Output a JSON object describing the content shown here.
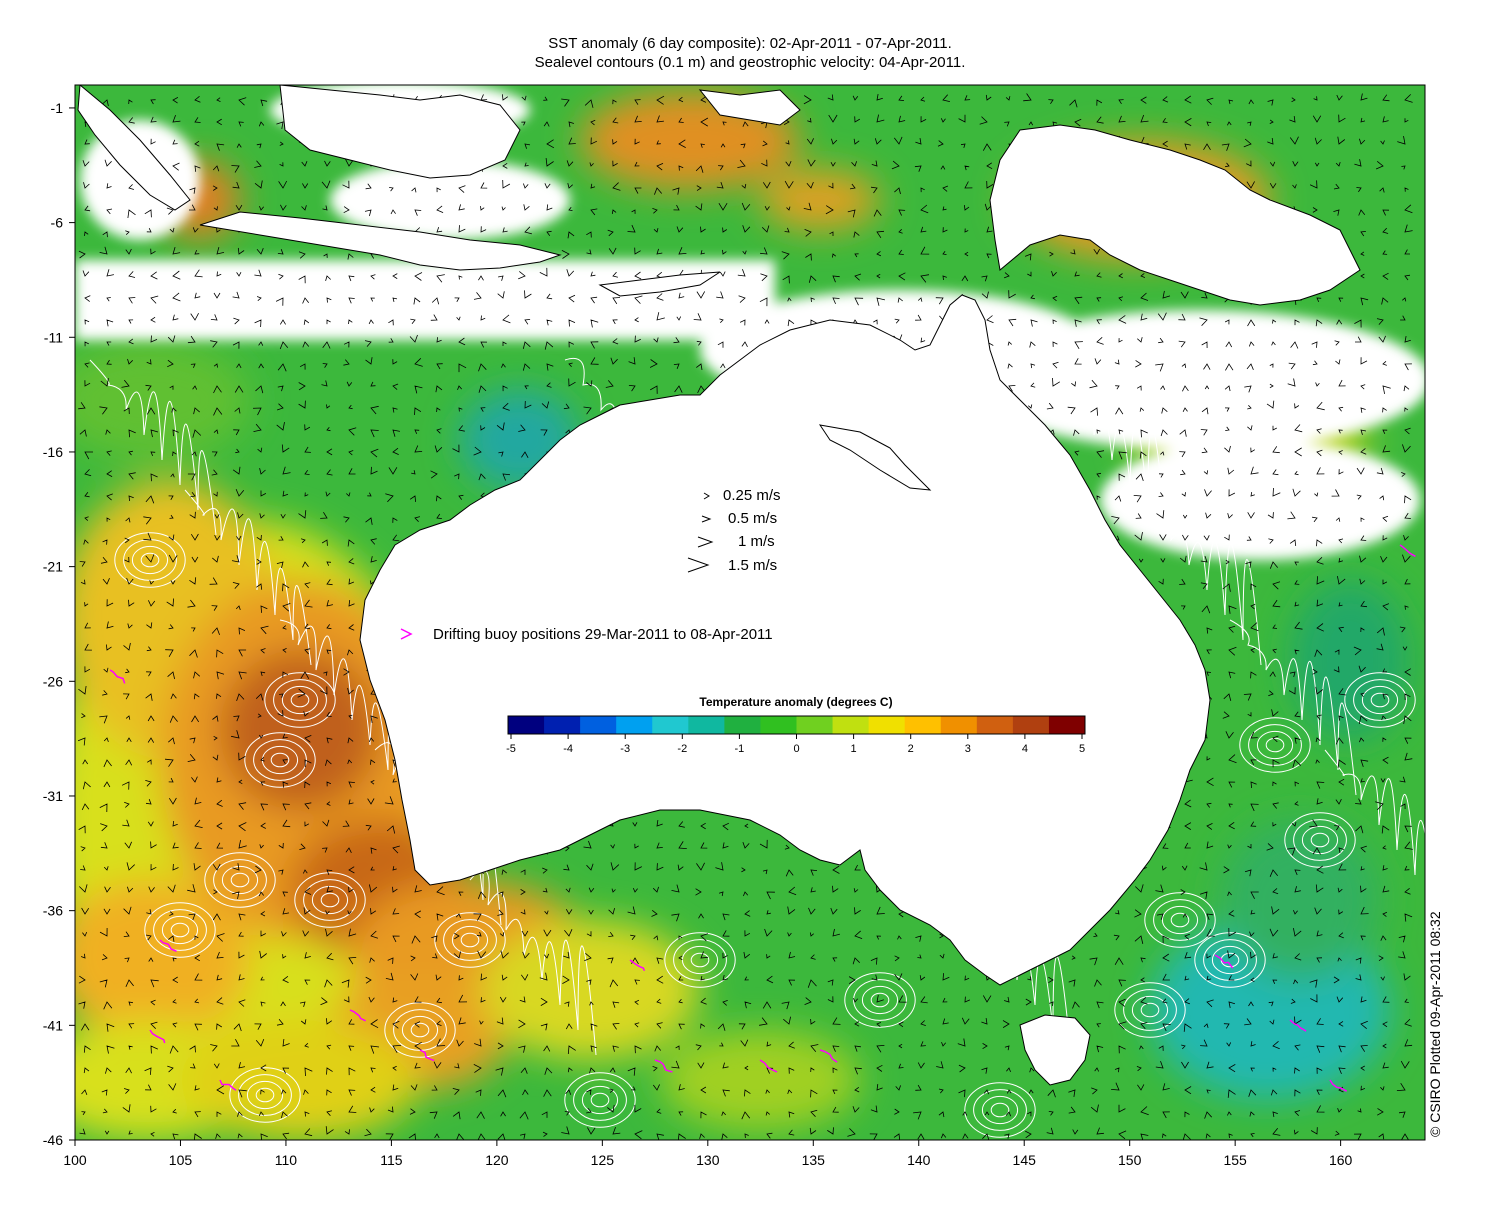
{
  "title": {
    "line1": "SST anomaly (6 day composite): 02-Apr-2011 - 07-Apr-2011.",
    "line2": "Sealevel contours (0.1 m) and geostrophic velocity: 04-Apr-2011."
  },
  "axes": {
    "x_ticks": [
      "100",
      "105",
      "110",
      "115",
      "120",
      "125",
      "130",
      "135",
      "140",
      "145",
      "150",
      "155",
      "160"
    ],
    "y_ticks": [
      "-1",
      "-6",
      "-11",
      "-16",
      "-21",
      "-26",
      "-31",
      "-36",
      "-41",
      "-46"
    ],
    "lon_range": [
      100,
      164
    ],
    "lat_range": [
      -46,
      0
    ]
  },
  "velocity_legend": [
    {
      "label": "0.25 m/s",
      "speed": 0.25
    },
    {
      "label": "0.5 m/s",
      "speed": 0.5
    },
    {
      "label": "1 m/s",
      "speed": 1
    },
    {
      "label": "1.5 m/s",
      "speed": 1.5
    }
  ],
  "buoy_legend": {
    "label": "Drifting buoy positions 29-Mar-2011 to 08-Apr-2011",
    "color": "#ff00ff"
  },
  "colorbar": {
    "title": "Temperature anomaly (degrees C)",
    "ticks": [
      "-5",
      "-4",
      "-3",
      "-2",
      "-1",
      "0",
      "1",
      "2",
      "3",
      "4",
      "5"
    ],
    "range": [
      -5,
      5
    ],
    "colors": [
      "#00007f",
      "#0020b0",
      "#0060e0",
      "#00a0f0",
      "#20c8d0",
      "#10b8a0",
      "#20b040",
      "#30c020",
      "#70d020",
      "#c0e010",
      "#f0e000",
      "#ffc000",
      "#f09000",
      "#d06010",
      "#b04010",
      "#7f0000"
    ]
  },
  "credit": "© CSIRO Plotted 09-Apr-2011 08:32",
  "colors": {
    "ocean_green": "#3cb83c",
    "ocean_yellow": "#d8e01a",
    "ocean_orange": "#e89a20",
    "ocean_dark_orange": "#c0601a",
    "ocean_cyan": "#2ab8a0",
    "land": "#ffffff",
    "coast": "#000000",
    "contour": "#ffffff",
    "arrow": "#000000",
    "buoy": "#ff00ff"
  }
}
